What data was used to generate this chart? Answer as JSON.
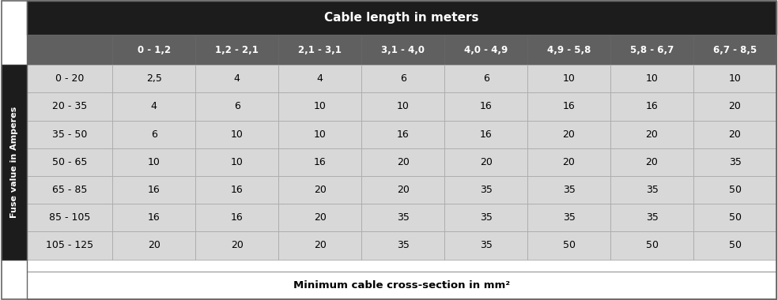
{
  "title": "Cable length in meters",
  "footer": "Minimum cable cross-section in mm²",
  "col_headers": [
    "0 - 1,2",
    "1,2 - 2,1",
    "2,1 - 3,1",
    "3,1 - 4,0",
    "4,0 - 4,9",
    "4,9 - 5,8",
    "5,8 - 6,7",
    "6,7 - 8,5"
  ],
  "row_headers": [
    "0 - 20",
    "20 - 35",
    "35 - 50",
    "50 - 65",
    "65 - 85",
    "85 - 105",
    "105 - 125"
  ],
  "row_label": "Fuse value in Amperes",
  "data": [
    [
      "2,5",
      "4",
      "4",
      "6",
      "6",
      "10",
      "10",
      "10"
    ],
    [
      "4",
      "6",
      "10",
      "10",
      "16",
      "16",
      "16",
      "20"
    ],
    [
      "6",
      "10",
      "10",
      "16",
      "16",
      "20",
      "20",
      "20"
    ],
    [
      "10",
      "10",
      "16",
      "20",
      "20",
      "20",
      "20",
      "35"
    ],
    [
      "16",
      "16",
      "20",
      "20",
      "35",
      "35",
      "35",
      "50"
    ],
    [
      "16",
      "16",
      "20",
      "35",
      "35",
      "35",
      "35",
      "50"
    ],
    [
      "20",
      "20",
      "20",
      "35",
      "35",
      "50",
      "50",
      "50"
    ]
  ],
  "color_title_bg": "#1c1c1c",
  "color_title_fg": "#ffffff",
  "color_col_header_bg": "#606060",
  "color_col_header_fg": "#ffffff",
  "color_row_label_bg": "#1c1c1c",
  "color_row_label_fg": "#ffffff",
  "color_cell_bg_light": "#d8d8d8",
  "color_cell_bg_mid": "#c8c8c8",
  "color_footer_bg": "#ffffff",
  "color_footer_fg": "#000000",
  "color_border": "#888888",
  "fig_w": 9.84,
  "fig_h": 3.8,
  "dpi": 100
}
